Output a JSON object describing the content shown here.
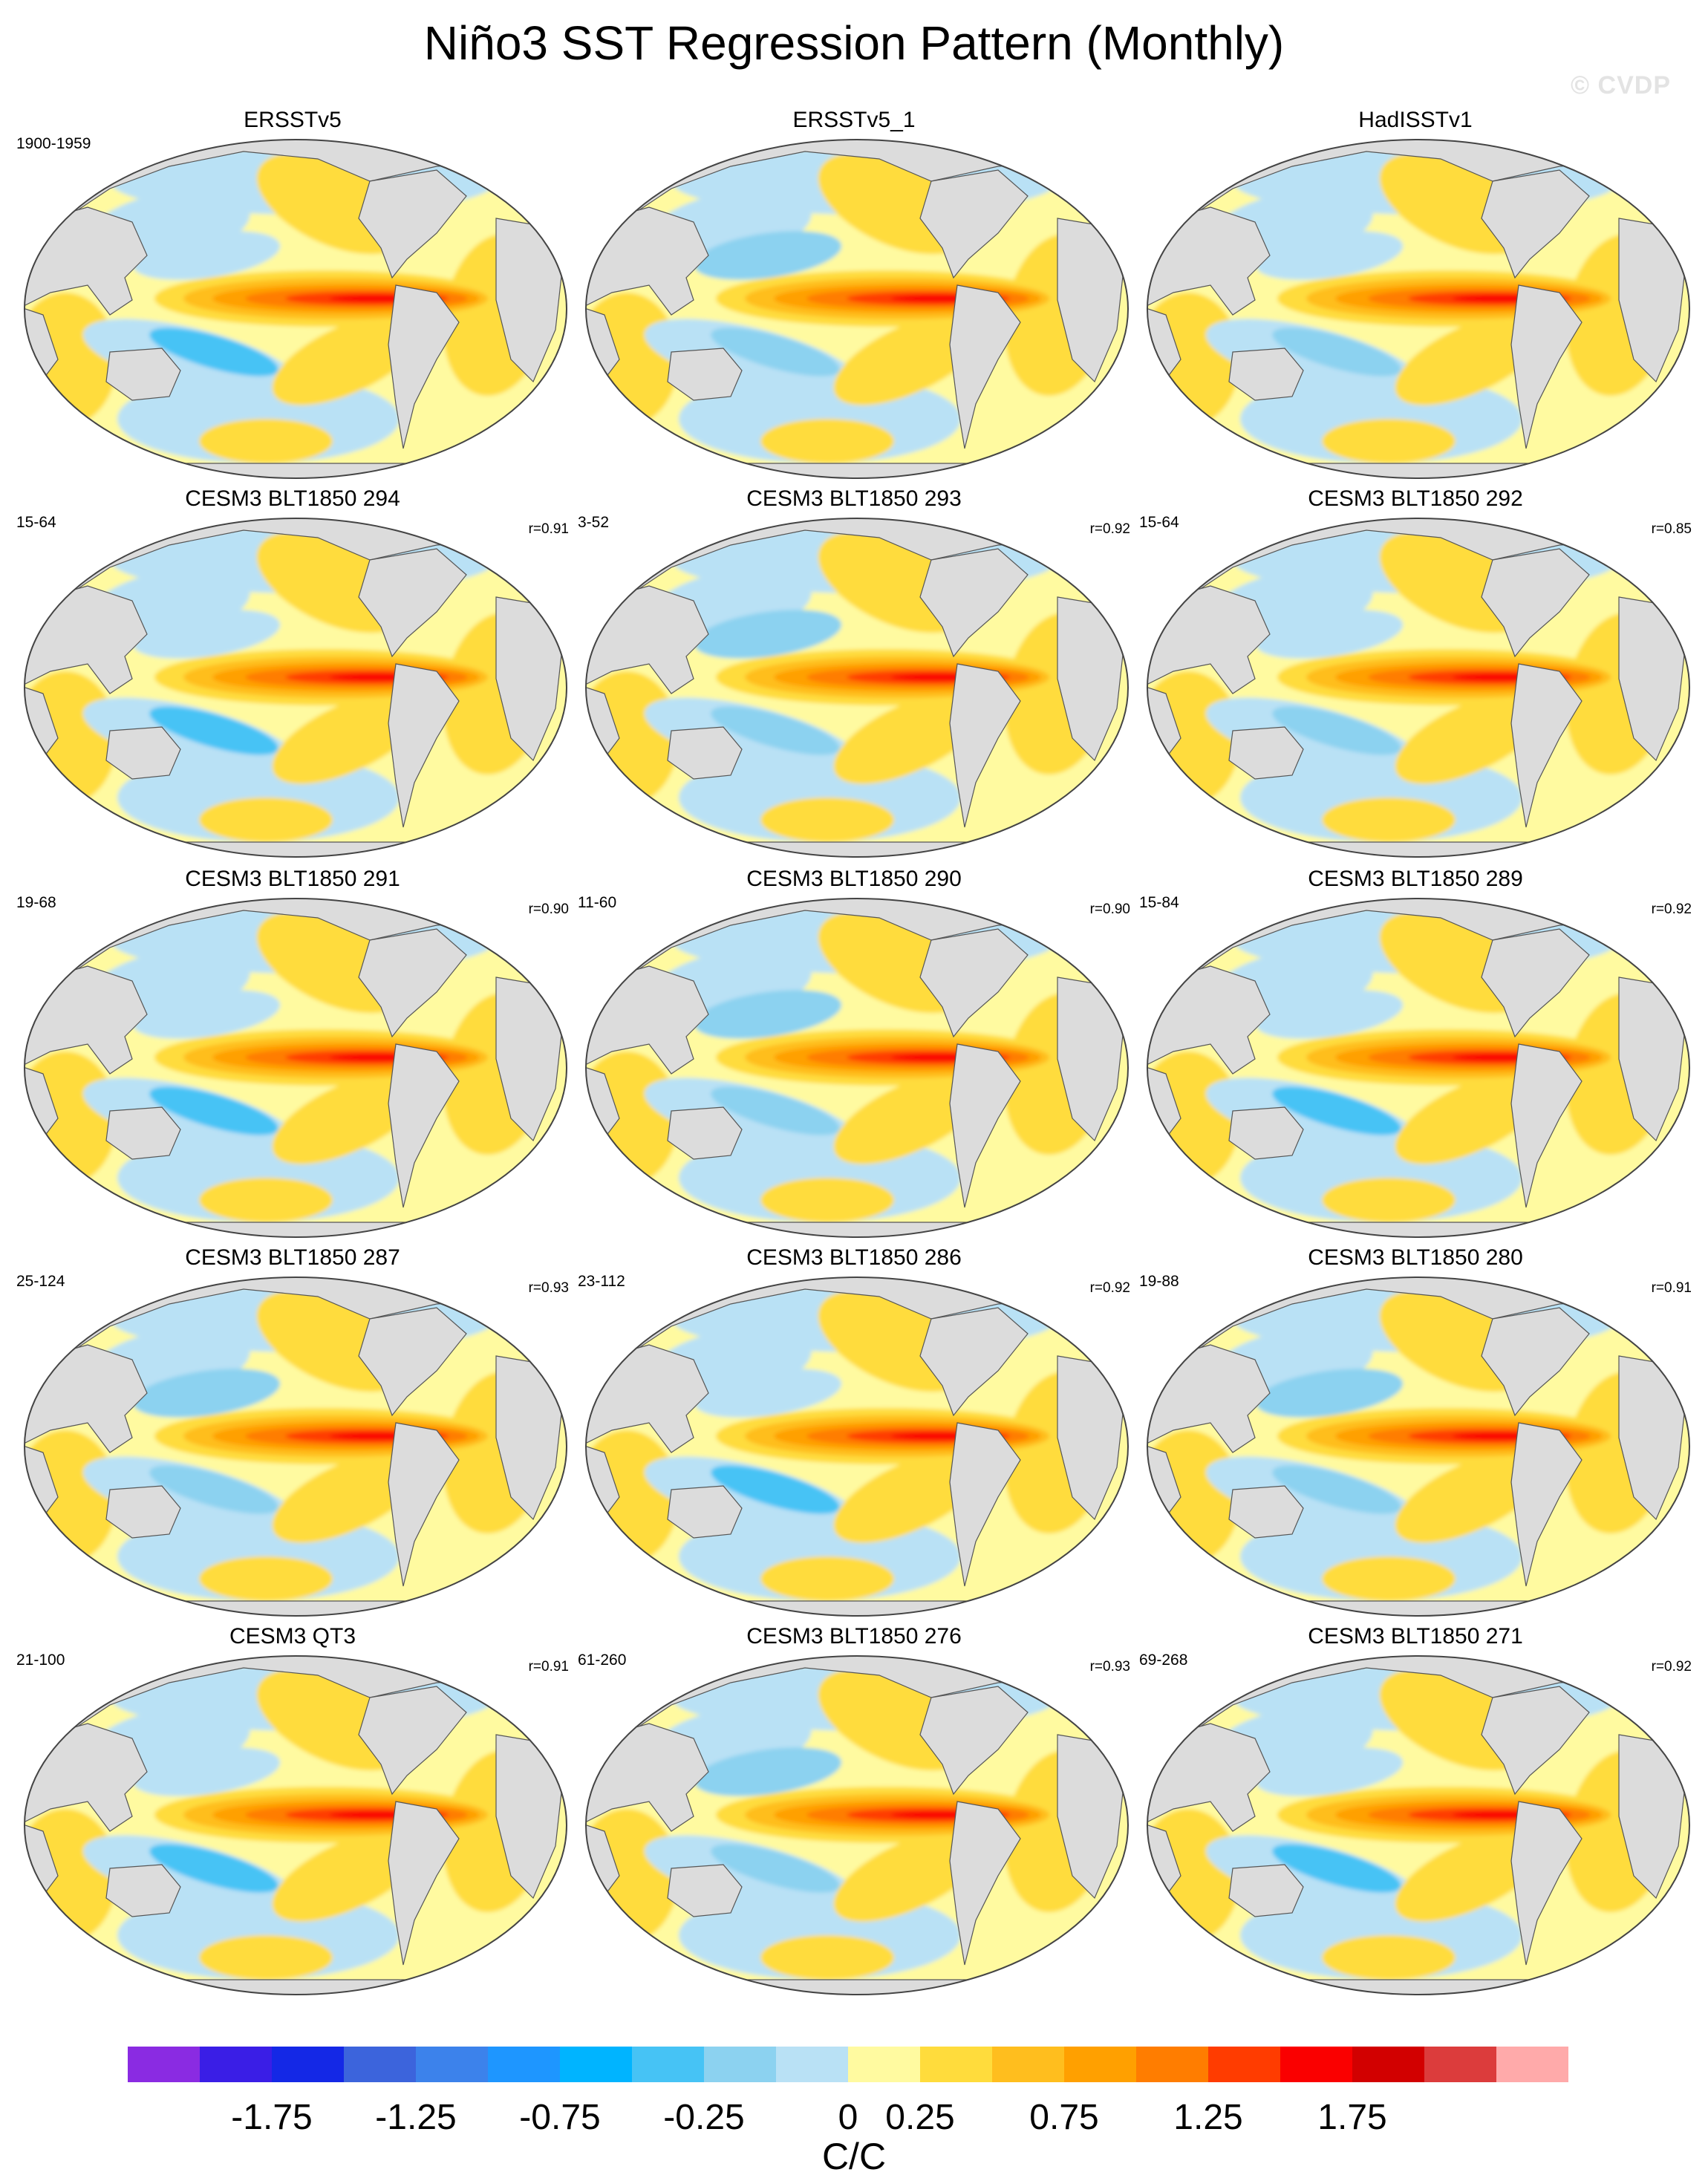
{
  "title": "Niño3 SST Regression Pattern (Monthly)",
  "watermark": "© CVDP",
  "panels": [
    {
      "name": "ERSSTv5",
      "period": "1900-1959",
      "r": "",
      "style": 0
    },
    {
      "name": "ERSSTv5_1",
      "period": "",
      "r": "",
      "style": 1
    },
    {
      "name": "HadISSTv1",
      "period": "",
      "r": "",
      "style": 2
    },
    {
      "name": "CESM3 BLT1850 294",
      "period": "15-64",
      "r": "r=0.91",
      "style": 3
    },
    {
      "name": "CESM3 BLT1850 293",
      "period": "3-52",
      "r": "r=0.92",
      "style": 4
    },
    {
      "name": "CESM3 BLT1850 292",
      "period": "15-64",
      "r": "r=0.85",
      "style": 5
    },
    {
      "name": "CESM3 BLT1850 291",
      "period": "19-68",
      "r": "r=0.90",
      "style": 3
    },
    {
      "name": "CESM3 BLT1850 290",
      "period": "11-60",
      "r": "r=0.90",
      "style": 4
    },
    {
      "name": "CESM3 BLT1850 289",
      "period": "15-84",
      "r": "r=0.92",
      "style": 3
    },
    {
      "name": "CESM3 BLT1850 287",
      "period": "25-124",
      "r": "r=0.93",
      "style": 4
    },
    {
      "name": "CESM3 BLT1850 286",
      "period": "23-112",
      "r": "r=0.92",
      "style": 3
    },
    {
      "name": "CESM3 BLT1850 280",
      "period": "19-88",
      "r": "r=0.91",
      "style": 4
    },
    {
      "name": "CESM3 QT3",
      "period": "21-100",
      "r": "r=0.91",
      "style": 3
    },
    {
      "name": "CESM3 BLT1850 276",
      "period": "61-260",
      "r": "r=0.93",
      "style": 4
    },
    {
      "name": "CESM3 BLT1850 271",
      "period": "69-268",
      "r": "r=0.92",
      "style": 3
    }
  ],
  "colorbar": {
    "colors": [
      "#8a2be2",
      "#3a1ee6",
      "#1428e6",
      "#3c64dc",
      "#3c82eb",
      "#1e96ff",
      "#00b4ff",
      "#46c3f5",
      "#8cd2f0",
      "#b9e1f5",
      "#fffaa0",
      "#ffdc3c",
      "#ffbe1e",
      "#ffa000",
      "#ff7d00",
      "#ff3c00",
      "#fa0000",
      "#d20000",
      "#dc3c3c",
      "#ffaaaa"
    ],
    "tick_labels": [
      "-1.75",
      "-1.25",
      "-0.75",
      "-0.25",
      "0",
      "0.25",
      "0.75",
      "1.25",
      "1.75"
    ],
    "units": "C/C"
  }
}
